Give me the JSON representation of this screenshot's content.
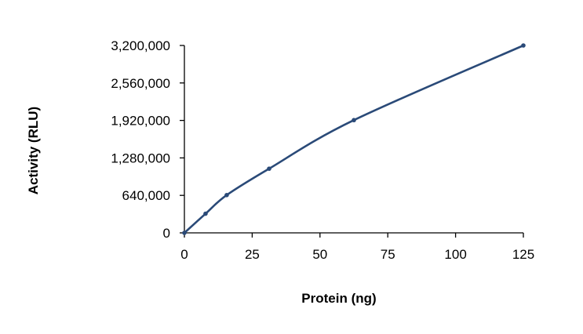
{
  "chart_data": {
    "type": "line",
    "title": "",
    "xlabel": "Protein (ng)",
    "ylabel": "Activity (RLU)",
    "xlim": [
      0,
      125
    ],
    "ylim": [
      0,
      3200000
    ],
    "xticks": [
      0,
      25,
      50,
      75,
      100,
      125
    ],
    "xtick_labels": [
      "0",
      "25",
      "50",
      "75",
      "100",
      "125"
    ],
    "yticks": [
      0,
      640000,
      1280000,
      1920000,
      2560000,
      3200000
    ],
    "ytick_labels": [
      "0",
      "640,000",
      "1,280,000",
      "1,920,000",
      "2,560,000",
      "3,200,000"
    ],
    "grid": false,
    "legend": "none",
    "series": [
      {
        "name": "Activity",
        "color": "#2a4a78",
        "smooth": true,
        "x": [
          0,
          7.8,
          15.6,
          31.25,
          62.5,
          125
        ],
        "y": [
          0,
          327000,
          645000,
          1096000,
          1925000,
          3200000
        ]
      }
    ]
  }
}
